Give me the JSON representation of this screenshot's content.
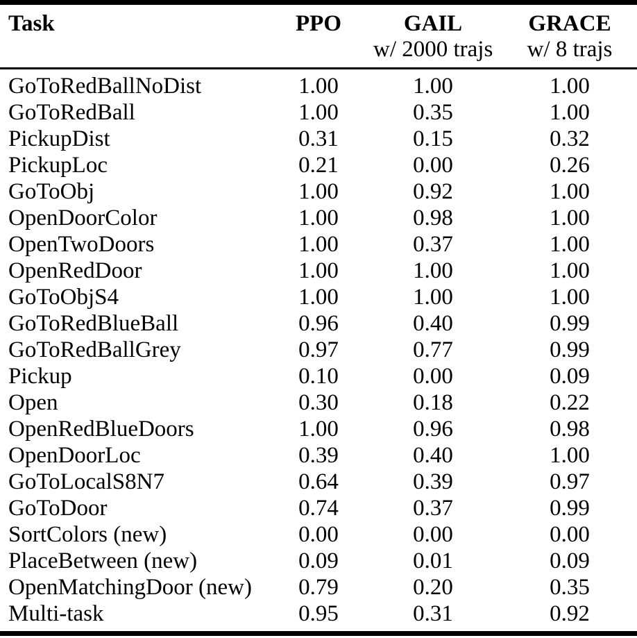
{
  "colors": {
    "text": "#000000",
    "background": "#ffffff",
    "rule": "#000000"
  },
  "table": {
    "columns": [
      {
        "label": "Task",
        "sublabel": ""
      },
      {
        "label": "PPO",
        "sublabel": ""
      },
      {
        "label": "GAIL",
        "sublabel": "w/ 2000 trajs"
      },
      {
        "label": "GRACE",
        "sublabel": "w/ 8 trajs"
      }
    ],
    "rows": [
      {
        "task": "GoToRedBallNoDist",
        "values": [
          "1.00",
          "1.00",
          "1.00"
        ]
      },
      {
        "task": "GoToRedBall",
        "values": [
          "1.00",
          "0.35",
          "1.00"
        ]
      },
      {
        "task": "PickupDist",
        "values": [
          "0.31",
          "0.15",
          "0.32"
        ]
      },
      {
        "task": "PickupLoc",
        "values": [
          "0.21",
          "0.00",
          "0.26"
        ]
      },
      {
        "task": "GoToObj",
        "values": [
          "1.00",
          "0.92",
          "1.00"
        ]
      },
      {
        "task": "OpenDoorColor",
        "values": [
          "1.00",
          "0.98",
          "1.00"
        ]
      },
      {
        "task": "OpenTwoDoors",
        "values": [
          "1.00",
          "0.37",
          "1.00"
        ]
      },
      {
        "task": "OpenRedDoor",
        "values": [
          "1.00",
          "1.00",
          "1.00"
        ]
      },
      {
        "task": "GoToObjS4",
        "values": [
          "1.00",
          "1.00",
          "1.00"
        ]
      },
      {
        "task": "GoToRedBlueBall",
        "values": [
          "0.96",
          "0.40",
          "0.99"
        ]
      },
      {
        "task": "GoToRedBallGrey",
        "values": [
          "0.97",
          "0.77",
          "0.99"
        ]
      },
      {
        "task": "Pickup",
        "values": [
          "0.10",
          "0.00",
          "0.09"
        ]
      },
      {
        "task": "Open",
        "values": [
          "0.30",
          "0.18",
          "0.22"
        ]
      },
      {
        "task": "OpenRedBlueDoors",
        "values": [
          "1.00",
          "0.96",
          "0.98"
        ]
      },
      {
        "task": "OpenDoorLoc",
        "values": [
          "0.39",
          "0.40",
          "1.00"
        ]
      },
      {
        "task": "GoToLocalS8N7",
        "values": [
          "0.64",
          "0.39",
          "0.97"
        ]
      },
      {
        "task": "GoToDoor",
        "values": [
          "0.74",
          "0.37",
          "0.99"
        ]
      },
      {
        "task": "SortColors (new)",
        "values": [
          "0.00",
          "0.00",
          "0.00"
        ]
      },
      {
        "task": "PlaceBetween (new)",
        "values": [
          "0.09",
          "0.01",
          "0.09"
        ]
      },
      {
        "task": "OpenMatchingDoor (new)",
        "values": [
          "0.79",
          "0.20",
          "0.35"
        ]
      },
      {
        "task": "Multi-task",
        "values": [
          "0.95",
          "0.31",
          "0.92"
        ]
      }
    ]
  }
}
